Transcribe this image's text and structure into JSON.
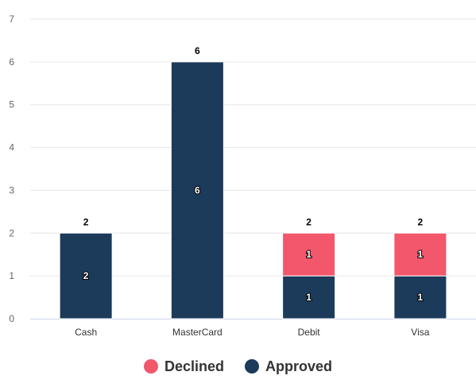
{
  "chart_data": {
    "type": "bar",
    "stacked": true,
    "categories": [
      "Cash",
      "MasterCard",
      "Debit",
      "Visa"
    ],
    "series": [
      {
        "name": "Approved",
        "values": [
          2,
          6,
          1,
          1
        ],
        "color": "#1c3a5a"
      },
      {
        "name": "Declined",
        "values": [
          0,
          0,
          1,
          1
        ],
        "color": "#f2576b"
      }
    ],
    "totals": [
      2,
      6,
      2,
      2
    ],
    "ylim": [
      0,
      7
    ],
    "yticks": [
      0,
      1,
      2,
      3,
      4,
      5,
      6,
      7
    ],
    "grid": true,
    "legend_position": "bottom"
  },
  "legend": {
    "items": [
      {
        "label": "Declined",
        "color": "#f2576b"
      },
      {
        "label": "Approved",
        "color": "#1c3a5a"
      }
    ]
  }
}
